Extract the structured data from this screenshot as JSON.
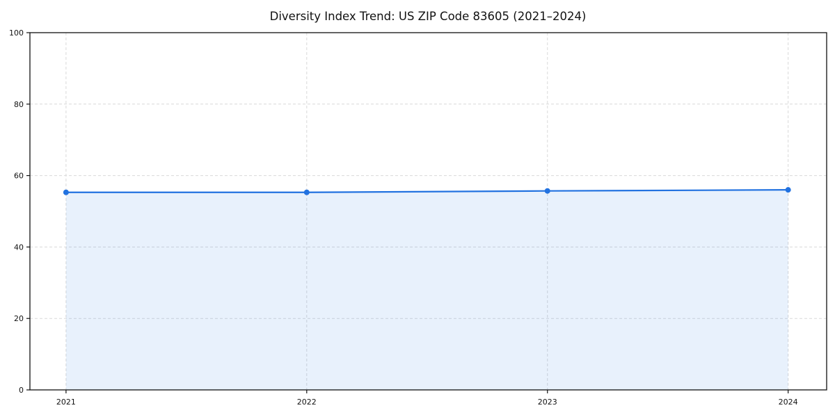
{
  "page": {
    "background": "#ffffff"
  },
  "chart_data": {
    "type": "area",
    "title": "Diversity Index Trend: US ZIP Code 83605 (2021–2024)",
    "x": [
      2021,
      2022,
      2023,
      2024
    ],
    "series": [
      {
        "name": "Diversity Index",
        "values": [
          55.3,
          55.3,
          55.7,
          56.0
        ]
      }
    ],
    "xlabel": "",
    "ylabel": "",
    "xlim": [
      2020.85,
      2024.16
    ],
    "ylim": [
      0,
      100
    ],
    "xticks": [
      2021,
      2022,
      2023,
      2024
    ],
    "xtick_labels": [
      "2021",
      "2022",
      "2023",
      "2024"
    ],
    "yticks": [
      0,
      20,
      40,
      60,
      80,
      100
    ],
    "ytick_labels": [
      "0",
      "20",
      "40",
      "60",
      "80",
      "100"
    ],
    "grid": "dashed",
    "grid_axes": "both",
    "legend": "none",
    "marker": "circle",
    "colors": {
      "line": "#2272e0",
      "marker": "#2272e0",
      "fill": "#2272e0",
      "fill_opacity": 0.1,
      "grid": "#d9d9d9",
      "axis": "#111111",
      "text": "#111111",
      "background": "#ffffff"
    }
  }
}
